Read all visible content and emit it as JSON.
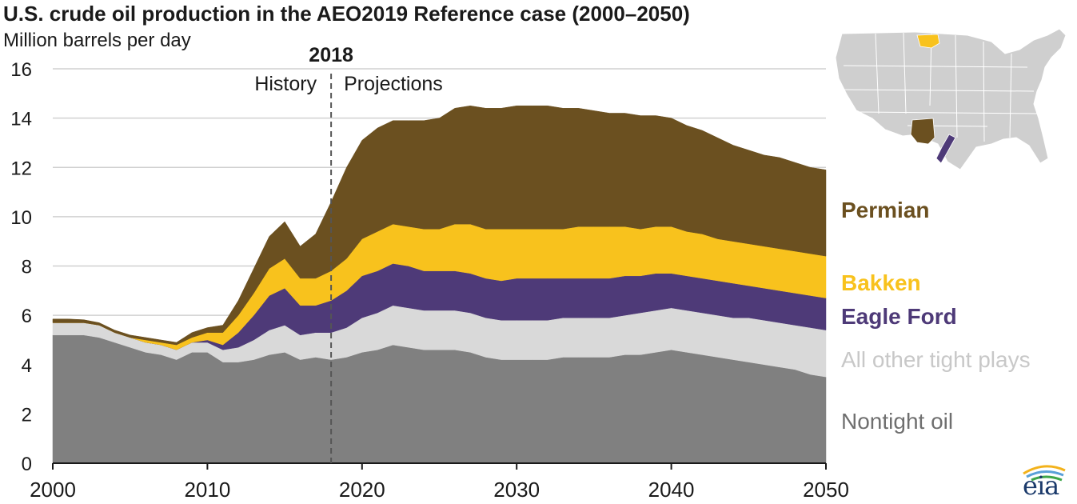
{
  "colors": {
    "nontight": "#808080",
    "other_tight": "#d9d9d9",
    "eagle_ford": "#4e3a78",
    "bakken": "#f8c21d",
    "permian": "#6b5020",
    "grid": "#d0d0d0",
    "axis": "#1a1a1a",
    "map_land": "#cfcfcf",
    "map_border": "#ffffff"
  },
  "logo": {
    "text": "eia"
  },
  "map": {
    "name": "us-map-with-play-locations"
  },
  "chart_data": {
    "type": "area",
    "title": "U.S. crude oil production in the AEO2019 Reference case (2000–2050)",
    "ylabel": "Million barrels per day",
    "xlabel": "",
    "ylim": [
      0,
      16
    ],
    "xlim": [
      2000,
      2050
    ],
    "yticks": [
      0,
      2,
      4,
      6,
      8,
      10,
      12,
      14,
      16
    ],
    "xticks": [
      2000,
      2010,
      2020,
      2030,
      2040,
      2050
    ],
    "ytick_labels": [
      "0",
      "2",
      "4",
      "6",
      "8",
      "10",
      "12",
      "14",
      "16"
    ],
    "xtick_labels": [
      "2000",
      "2010",
      "2020",
      "2030",
      "2040",
      "2050"
    ],
    "grid": true,
    "stacked": true,
    "divider": {
      "x": 2018,
      "label": "2018",
      "left_label": "History",
      "right_label": "Projections"
    },
    "x": [
      2000,
      2001,
      2002,
      2003,
      2004,
      2005,
      2006,
      2007,
      2008,
      2009,
      2010,
      2011,
      2012,
      2013,
      2014,
      2015,
      2016,
      2017,
      2018,
      2019,
      2020,
      2021,
      2022,
      2023,
      2024,
      2025,
      2026,
      2027,
      2028,
      2029,
      2030,
      2031,
      2032,
      2033,
      2034,
      2035,
      2036,
      2037,
      2038,
      2039,
      2040,
      2041,
      2042,
      2043,
      2044,
      2045,
      2046,
      2047,
      2048,
      2049,
      2050
    ],
    "series": [
      {
        "name": "Nontight oil",
        "key": "nontight",
        "values": [
          5.2,
          5.2,
          5.2,
          5.1,
          4.9,
          4.7,
          4.5,
          4.4,
          4.2,
          4.5,
          4.5,
          4.1,
          4.1,
          4.2,
          4.4,
          4.5,
          4.2,
          4.3,
          4.2,
          4.3,
          4.5,
          4.6,
          4.8,
          4.7,
          4.6,
          4.6,
          4.6,
          4.5,
          4.3,
          4.2,
          4.2,
          4.2,
          4.2,
          4.3,
          4.3,
          4.3,
          4.3,
          4.4,
          4.4,
          4.5,
          4.6,
          4.5,
          4.4,
          4.3,
          4.2,
          4.1,
          4.0,
          3.9,
          3.8,
          3.6,
          3.5
        ]
      },
      {
        "name": "All other tight plays",
        "key": "other_tight",
        "values": [
          0.5,
          0.5,
          0.5,
          0.5,
          0.4,
          0.4,
          0.4,
          0.4,
          0.4,
          0.4,
          0.4,
          0.5,
          0.6,
          0.8,
          1.0,
          1.1,
          1.0,
          1.0,
          1.1,
          1.2,
          1.4,
          1.5,
          1.6,
          1.6,
          1.6,
          1.6,
          1.6,
          1.6,
          1.6,
          1.6,
          1.6,
          1.6,
          1.6,
          1.6,
          1.6,
          1.6,
          1.6,
          1.6,
          1.7,
          1.7,
          1.7,
          1.7,
          1.7,
          1.7,
          1.7,
          1.8,
          1.8,
          1.8,
          1.8,
          1.9,
          1.9
        ]
      },
      {
        "name": "Eagle Ford",
        "key": "eagle_ford",
        "values": [
          0,
          0,
          0,
          0,
          0,
          0,
          0,
          0,
          0,
          0,
          0.1,
          0.2,
          0.6,
          1.0,
          1.4,
          1.5,
          1.2,
          1.1,
          1.3,
          1.5,
          1.7,
          1.7,
          1.7,
          1.7,
          1.6,
          1.6,
          1.6,
          1.6,
          1.6,
          1.6,
          1.7,
          1.7,
          1.7,
          1.6,
          1.6,
          1.6,
          1.6,
          1.6,
          1.5,
          1.5,
          1.4,
          1.4,
          1.4,
          1.4,
          1.4,
          1.3,
          1.3,
          1.3,
          1.3,
          1.3,
          1.3
        ]
      },
      {
        "name": "Bakken",
        "key": "bakken",
        "values": [
          0,
          0,
          0,
          0,
          0,
          0,
          0.1,
          0.1,
          0.2,
          0.2,
          0.3,
          0.5,
          0.7,
          0.9,
          1.1,
          1.2,
          1.1,
          1.1,
          1.2,
          1.3,
          1.5,
          1.6,
          1.6,
          1.6,
          1.7,
          1.7,
          1.9,
          2.0,
          2.0,
          2.1,
          2.0,
          2.0,
          2.0,
          2.0,
          2.1,
          2.1,
          2.1,
          2.0,
          1.9,
          1.9,
          1.9,
          1.8,
          1.8,
          1.7,
          1.7,
          1.7,
          1.7,
          1.7,
          1.7,
          1.7,
          1.7
        ]
      },
      {
        "name": "Permian",
        "key": "permian",
        "values": [
          0.15,
          0.15,
          0.12,
          0.1,
          0.1,
          0.1,
          0.1,
          0.1,
          0.1,
          0.2,
          0.2,
          0.3,
          0.6,
          1.0,
          1.3,
          1.5,
          1.3,
          1.8,
          2.8,
          3.7,
          4.0,
          4.2,
          4.2,
          4.3,
          4.4,
          4.5,
          4.7,
          4.8,
          4.9,
          4.9,
          5.0,
          5.0,
          5.0,
          4.9,
          4.8,
          4.7,
          4.6,
          4.6,
          4.6,
          4.5,
          4.4,
          4.3,
          4.2,
          4.1,
          3.9,
          3.8,
          3.7,
          3.7,
          3.6,
          3.5,
          3.5
        ]
      }
    ],
    "legend": [
      {
        "label": "Permian",
        "key": "permian",
        "color": "#6b5020"
      },
      {
        "label": "Bakken",
        "key": "bakken",
        "color": "#f8c21d"
      },
      {
        "label": "Eagle Ford",
        "key": "eagle_ford",
        "color": "#4e3a78"
      },
      {
        "label": "All other tight plays",
        "key": "other_tight",
        "color": "#c8c8c8"
      },
      {
        "label": "Nontight oil",
        "key": "nontight",
        "color": "#6f6f6f"
      }
    ]
  }
}
